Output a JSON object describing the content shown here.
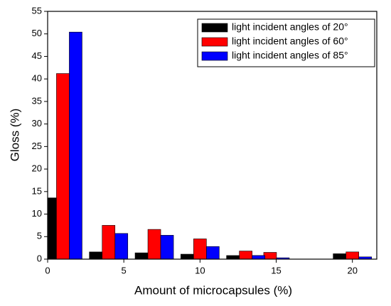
{
  "chart_data": {
    "type": "bar",
    "x_label": "Amount of microcapsules (%)",
    "y_label": "Gloss (%)",
    "x": [
      1,
      4,
      7,
      10,
      13,
      14.6,
      20
    ],
    "bar_width": 0.84,
    "series": [
      {
        "name": "light incident angles of 20°",
        "color": "#000000",
        "values": [
          13.6,
          1.6,
          1.4,
          1.1,
          0.8,
          0.8,
          1.2
        ]
      },
      {
        "name": "light incident angles of 60°",
        "color": "#ff0000",
        "values": [
          41.2,
          7.5,
          6.6,
          4.5,
          1.8,
          1.5,
          1.6
        ]
      },
      {
        "name": "light incident angles of 85°",
        "color": "#0000ff",
        "values": [
          50.4,
          5.7,
          5.3,
          2.8,
          0.8,
          0.3,
          0.5
        ]
      }
    ],
    "xlim": [
      0,
      21.6
    ],
    "xticks": [
      0,
      5,
      10,
      15,
      20
    ],
    "ylim": [
      0,
      55
    ],
    "yticks": [
      0,
      5,
      10,
      15,
      20,
      25,
      30,
      35,
      40,
      45,
      50,
      55
    ],
    "legend": "upper right",
    "grid": false
  }
}
